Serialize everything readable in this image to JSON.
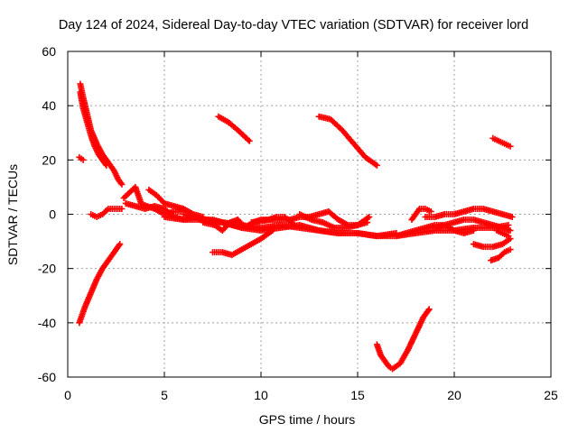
{
  "chart_data": {
    "type": "scatter",
    "title": "Day 124 of 2024, Sidereal Day-to-day VTEC variation (SDTVAR) for receiver lord",
    "xlabel": "GPS time / hours",
    "ylabel": "SDTVAR / TECUs",
    "xlim": [
      0,
      25
    ],
    "ylim": [
      -60,
      60
    ],
    "xticks": [
      0,
      5,
      10,
      15,
      20,
      25
    ],
    "yticks": [
      -60,
      -40,
      -20,
      0,
      20,
      40,
      60
    ],
    "grid": true,
    "marker": "+",
    "color": "#ff0000",
    "series": [
      {
        "x": [
          0.65,
          0.8,
          1.0,
          1.2,
          1.5,
          1.8,
          2.1,
          2.4,
          2.6,
          2.8
        ],
        "y": [
          48,
          43,
          37,
          31,
          26,
          22,
          19,
          16,
          13,
          11
        ]
      },
      {
        "x": [
          0.65,
          0.8,
          1.0,
          1.2,
          1.4,
          1.6,
          1.8,
          2.0
        ],
        "y": [
          45,
          39,
          34,
          29,
          25,
          22,
          20,
          18
        ]
      },
      {
        "x": [
          0.6,
          0.7,
          0.8
        ],
        "y": [
          21,
          20.5,
          20
        ]
      },
      {
        "x": [
          0.6,
          0.9,
          1.2,
          1.5,
          1.8,
          2.1,
          2.4,
          2.7
        ],
        "y": [
          -40,
          -34,
          -29,
          -24,
          -20,
          -17,
          -14,
          -11
        ]
      },
      {
        "x": [
          1.2,
          1.5,
          1.8,
          2.1,
          2.4,
          2.8
        ],
        "y": [
          0,
          -1,
          0,
          2,
          2,
          2
        ]
      },
      {
        "x": [
          2.9,
          3.2,
          3.5,
          3.8,
          4.1,
          4.5,
          5.0,
          5.5,
          6.0
        ],
        "y": [
          6,
          8,
          10,
          4,
          3,
          2,
          0,
          1,
          1
        ]
      },
      {
        "x": [
          3.0,
          3.5,
          4.0,
          4.5,
          5.0,
          5.5,
          6.0,
          6.5,
          7.0,
          7.5,
          8.0,
          8.5,
          9.0
        ],
        "y": [
          4,
          3,
          2,
          3,
          2,
          -1,
          -2,
          -1,
          -2,
          -2,
          -3,
          -4,
          -5
        ]
      },
      {
        "x": [
          4.2,
          4.6,
          5.0,
          5.5,
          6.0,
          6.5,
          7.0
        ],
        "y": [
          9,
          7,
          4,
          3,
          2,
          0,
          -1
        ]
      },
      {
        "x": [
          5.0,
          6.0,
          7.0,
          8.0,
          9.0,
          10.0,
          11.0,
          12.0,
          13.0,
          14.0,
          15.0,
          16.0,
          17.0,
          18.0,
          19.0,
          20.0,
          21.0,
          22.0,
          22.8
        ],
        "y": [
          -1,
          -2,
          -2,
          -3,
          -4,
          -5,
          -4,
          -5,
          -6,
          -7,
          -7,
          -8,
          -8,
          -7,
          -6,
          -6,
          -5,
          -5,
          -4
        ]
      },
      {
        "x": [
          6.0,
          7.0,
          8.0,
          9.0,
          10.0,
          11.0,
          12.0,
          13.0,
          14.0,
          15.0,
          16.0,
          17.0
        ],
        "y": [
          0,
          -2,
          -3,
          -5,
          -6,
          -5,
          -4,
          -6,
          -7,
          -7,
          -8,
          -7
        ]
      },
      {
        "x": [
          7.0,
          7.6,
          8.0,
          8.4,
          8.8,
          9.2,
          9.6,
          10.0,
          10.4,
          10.8,
          11.2,
          11.6
        ],
        "y": [
          -3,
          -4,
          -6,
          -3,
          -2,
          -5,
          -3,
          -2,
          -2,
          -1,
          -1,
          -3
        ]
      },
      {
        "x": [
          7.5,
          8.0,
          8.5,
          9.0,
          9.5,
          10.0,
          10.6
        ],
        "y": [
          -14,
          -14,
          -15,
          -13,
          -11,
          -9,
          -6
        ]
      },
      {
        "x": [
          7.8,
          8.3,
          8.8,
          9.4
        ],
        "y": [
          36,
          34,
          31,
          27
        ]
      },
      {
        "x": [
          13.0,
          13.6,
          14.2,
          14.8,
          15.4,
          16.0
        ],
        "y": [
          36,
          35,
          31,
          26,
          21,
          18
        ]
      },
      {
        "x": [
          9.5,
          10.5,
          11.5,
          12.0,
          12.5,
          13.0,
          13.5,
          14.0,
          14.5,
          15.0,
          15.5
        ],
        "y": [
          -3,
          -2,
          -2,
          -1,
          -1,
          0,
          1,
          -2,
          -4,
          -4,
          -3
        ]
      },
      {
        "x": [
          12.0,
          12.6,
          13.2,
          13.8,
          14.4,
          15.0,
          15.6
        ],
        "y": [
          0,
          -2,
          -3,
          -5,
          -5,
          -4,
          -1
        ]
      },
      {
        "x": [
          16.0,
          16.2,
          16.4,
          16.6,
          16.8,
          17.2,
          17.6,
          18.0,
          18.4,
          18.7
        ],
        "y": [
          -48,
          -52,
          -54,
          -56,
          -57,
          -55,
          -50,
          -44,
          -38,
          -35
        ]
      },
      {
        "x": [
          17.0,
          17.5,
          18.0,
          18.5,
          19.0,
          19.5,
          20.0,
          20.5,
          21.0,
          21.5,
          22.0,
          22.5,
          22.9
        ],
        "y": [
          -8,
          -7,
          -6,
          -5,
          -4,
          -4,
          -3,
          -2,
          -2,
          -3,
          -4,
          -5,
          -6
        ]
      },
      {
        "x": [
          17.8,
          18.0,
          18.2,
          18.5,
          18.8
        ],
        "y": [
          -2,
          0,
          2,
          2,
          1
        ]
      },
      {
        "x": [
          18.5,
          19.0,
          19.5,
          20.0,
          20.5,
          21.0,
          21.5,
          22.0,
          22.5,
          23.0
        ],
        "y": [
          -1,
          -1,
          0,
          0,
          1,
          2,
          2,
          1,
          0,
          -1
        ]
      },
      {
        "x": [
          19.0,
          19.5,
          20.0,
          20.5,
          21.0
        ],
        "y": [
          -5,
          -4,
          -6,
          -7,
          -6
        ]
      },
      {
        "x": [
          21.0,
          21.5,
          22.0,
          22.5,
          22.9
        ],
        "y": [
          -11,
          -12,
          -12,
          -11,
          -9
        ]
      },
      {
        "x": [
          21.9,
          22.3,
          22.6,
          22.9
        ],
        "y": [
          -17,
          -16,
          -14,
          -13
        ]
      },
      {
        "x": [
          22.0,
          22.3,
          22.6,
          22.9
        ],
        "y": [
          28,
          27,
          26,
          25
        ]
      },
      {
        "x": [
          22.2,
          22.5,
          22.8
        ],
        "y": [
          -6,
          -7,
          -8
        ]
      }
    ]
  }
}
